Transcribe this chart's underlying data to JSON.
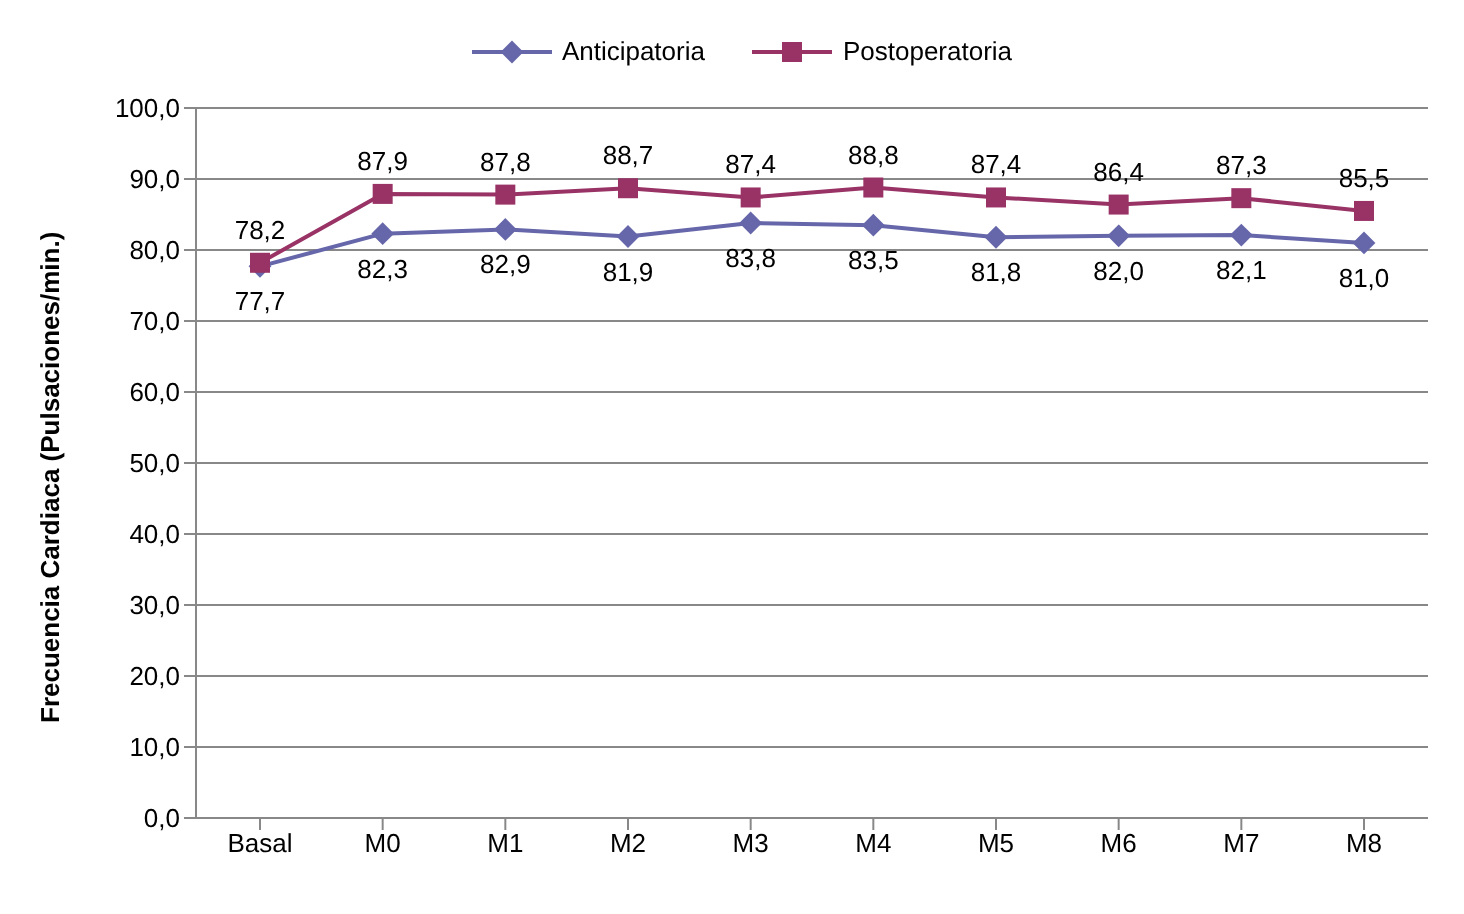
{
  "chart_data": {
    "type": "line",
    "ylabel": "Frecuencia Cardiaca (Pulsaciones/min.)",
    "categories": [
      "Basal",
      "M0",
      "M1",
      "M2",
      "M3",
      "M4",
      "M5",
      "M6",
      "M7",
      "M8"
    ],
    "series": [
      {
        "name": "Anticipatoria",
        "color": "#6666aa",
        "marker": "diamond",
        "values": [
          77.7,
          82.3,
          82.9,
          81.9,
          83.8,
          83.5,
          81.8,
          82.0,
          82.1,
          81.0
        ],
        "value_labels": [
          "77,7",
          "82,3",
          "82,9",
          "81,9",
          "83,8",
          "83,5",
          "81,8",
          "82,0",
          "82,1",
          "81,0"
        ]
      },
      {
        "name": "Postoperatoria",
        "color": "#993366",
        "marker": "square",
        "values": [
          78.2,
          87.9,
          87.8,
          88.7,
          87.4,
          88.8,
          87.4,
          86.4,
          87.3,
          85.5
        ],
        "value_labels": [
          "78,2",
          "87,9",
          "87,8",
          "88,7",
          "87,4",
          "88,8",
          "87,4",
          "86,4",
          "87,3",
          "85,5"
        ]
      }
    ],
    "ylim": [
      0,
      100
    ],
    "yticks": [
      {
        "value": 0,
        "label": "0,0"
      },
      {
        "value": 10,
        "label": "10,0"
      },
      {
        "value": 20,
        "label": "20,0"
      },
      {
        "value": 30,
        "label": "30,0"
      },
      {
        "value": 40,
        "label": "40,0"
      },
      {
        "value": 50,
        "label": "50,0"
      },
      {
        "value": 60,
        "label": "60,0"
      },
      {
        "value": 70,
        "label": "70,0"
      },
      {
        "value": 80,
        "label": "80,0"
      },
      {
        "value": 90,
        "label": "90,0"
      },
      {
        "value": 100,
        "label": "100,0"
      }
    ],
    "grid": "y",
    "legend": "top",
    "line_style": "solid"
  }
}
